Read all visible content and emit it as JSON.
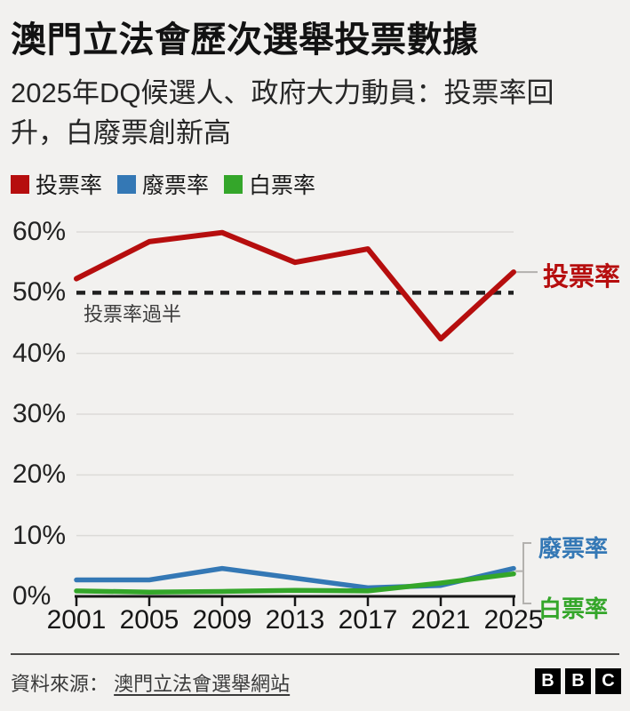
{
  "header": {
    "title": "澳門立法會歷次選舉投票數據",
    "subtitle": "2025年DQ候選人、政府大力動員：投票率回升，白廢票創新高"
  },
  "legend": [
    {
      "label": "投票率",
      "color": "#b60e0e"
    },
    {
      "label": "廢票率",
      "color": "#3478b5"
    },
    {
      "label": "白票率",
      "color": "#34a62a"
    }
  ],
  "chart_data": {
    "type": "line",
    "x": [
      2001,
      2005,
      2009,
      2013,
      2017,
      2021,
      2025
    ],
    "x_labels": [
      "2001",
      "2005",
      "2009",
      "2013",
      "2017",
      "2021",
      "2025"
    ],
    "series": [
      {
        "name": "投票率",
        "color": "#b60e0e",
        "values": [
          52.3,
          58.4,
          59.9,
          55.0,
          57.2,
          42.4,
          53.4
        ]
      },
      {
        "name": "廢票率",
        "color": "#3478b5",
        "values": [
          2.7,
          2.7,
          4.6,
          3.0,
          1.4,
          1.8,
          4.6
        ]
      },
      {
        "name": "白票率",
        "color": "#34a62a",
        "values": [
          0.9,
          0.7,
          0.8,
          1.0,
          0.9,
          2.2,
          3.7
        ]
      }
    ],
    "y_ticks": [
      {
        "value": 60,
        "label": "60%"
      },
      {
        "value": 50,
        "label": "50%"
      },
      {
        "value": 40,
        "label": "40%"
      },
      {
        "value": 30,
        "label": "30%"
      },
      {
        "value": 20,
        "label": "20%"
      },
      {
        "value": 10,
        "label": "10%"
      },
      {
        "value": 0,
        "label": "0%"
      }
    ],
    "ylim": [
      0,
      62
    ],
    "grid": "horizontal",
    "legend_position": "top",
    "reference_line": {
      "value": 50,
      "label": "投票率過半"
    },
    "end_labels": [
      "投票率",
      "廢票率",
      "白票率"
    ]
  },
  "footer": {
    "source_prefix": "資料來源：",
    "source_link": "澳門立法會選舉網站",
    "logo_blocks": [
      "B",
      "B",
      "C"
    ]
  }
}
